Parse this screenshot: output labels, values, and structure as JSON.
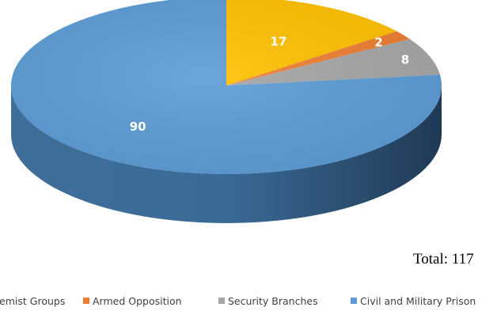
{
  "chart_data": {
    "type": "pie",
    "style": "3d",
    "categories": [
      "Extremist Groups",
      "Armed Opposition",
      "Security Branches",
      "Civil and Military Prison"
    ],
    "values": [
      17,
      2,
      8,
      90
    ],
    "colors": [
      "#FFC000",
      "#ED7D31",
      "#A5A5A5",
      "#5B9BD5"
    ],
    "data_labels": [
      "17",
      "2",
      "8",
      "90"
    ],
    "total_label": "Total: 117",
    "legend_position": "bottom"
  }
}
